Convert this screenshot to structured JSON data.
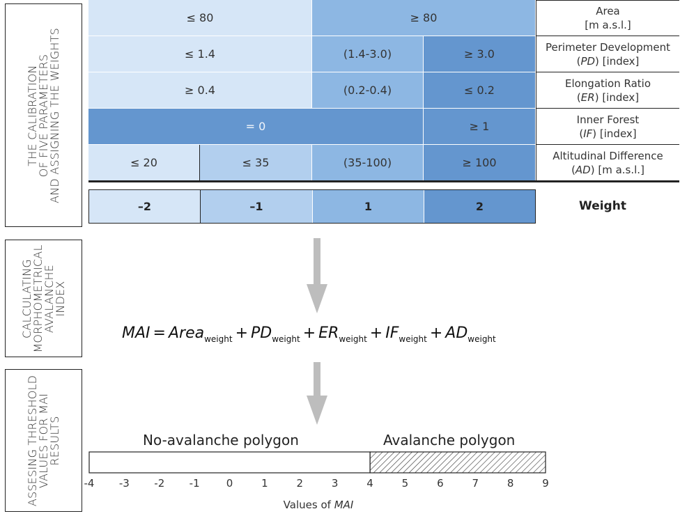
{
  "side_labels": {
    "calibration": "THE CALIBRATION\nOF FIVE PARAMETERS\nAND ASSIGNING THE WEIGHTS",
    "calculating": "CALCULATING\nMORPHOMETRICAL\nAVALANCHE\nINDEX",
    "assessing": "ASSESING THRESHOLD\nVALUES FOR MAI\nRESULTS"
  },
  "parameters": {
    "area": {
      "cells": [
        "≤ 80",
        "≥ 80"
      ],
      "label1": "Area",
      "label2": "[m a.s.l.]"
    },
    "pd": {
      "cells": [
        "≤ 1.4",
        "(1.4-3.0)",
        "≥ 3.0"
      ],
      "label1": "Perimeter Development",
      "label2_abbr": "PD",
      "label2_unit": "[index]"
    },
    "er": {
      "cells": [
        "≥ 0.4",
        "(0.2-0.4)",
        "≤ 0.2"
      ],
      "label1": "Elongation Ratio",
      "label2_abbr": "ER",
      "label2_unit": "[index]"
    },
    "if": {
      "cells": [
        "= 0",
        "≥ 1"
      ],
      "label1": "Inner Forest",
      "label2_abbr": "IF",
      "label2_unit": "[index]"
    },
    "ad": {
      "cells": [
        "≤ 20",
        "≤ 35",
        "(35-100)",
        "≥ 100"
      ],
      "label1": "Altitudinal Difference",
      "label2_abbr": "AD",
      "label2_unit": "[m a.s.l.]"
    }
  },
  "weights": {
    "values": [
      "–2",
      "–1",
      "1",
      "2"
    ],
    "label": "Weight"
  },
  "formula": {
    "lhs": "MAI",
    "eq": "=",
    "terms": [
      "Area",
      "PD",
      "ER",
      "IF",
      "AD"
    ],
    "subscript": "weight",
    "plus": "+"
  },
  "threshold": {
    "no_avalanche_label": "No-avalanche polygon",
    "avalanche_label": "Avalanche polygon",
    "threshold_value": 4,
    "axis_min": -4,
    "axis_max": 9,
    "ticks": [
      "-4",
      "-3",
      "-2",
      "-1",
      "0",
      "1",
      "2",
      "3",
      "4",
      "5",
      "6",
      "7",
      "8",
      "9"
    ],
    "axis_title_prefix": "Values of",
    "axis_title_abbr": "MAI"
  },
  "colors": {
    "shade1": "#d6e6f7",
    "shade2": "#b2cfee",
    "shade3": "#8db7e3",
    "shade4": "#6496cf",
    "arrow": "#bdbdbd"
  }
}
